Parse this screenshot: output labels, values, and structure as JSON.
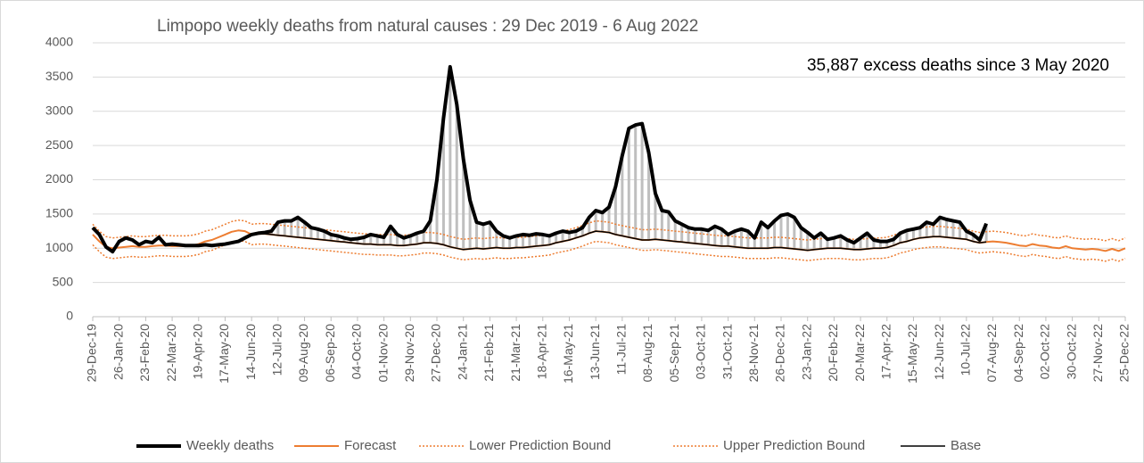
{
  "chart_data": {
    "type": "line",
    "title": "Limpopo weekly deaths from natural causes : 29 Dec 2019 - 6 Aug 2022",
    "annotation": "35,887 excess deaths since 3 May 2020",
    "categories": [
      "29-Dec-19",
      null,
      null,
      null,
      "26-Jan-20",
      null,
      null,
      null,
      "23-Feb-20",
      null,
      null,
      null,
      "22-Mar-20",
      null,
      null,
      null,
      "19-Apr-20",
      null,
      null,
      null,
      "17-May-20",
      null,
      null,
      null,
      "14-Jun-20",
      null,
      null,
      null,
      "12-Jul-20",
      null,
      null,
      null,
      "09-Aug-20",
      null,
      null,
      null,
      "06-Sep-20",
      null,
      null,
      null,
      "04-Oct-20",
      null,
      null,
      null,
      "01-Nov-20",
      null,
      null,
      null,
      "29-Nov-20",
      null,
      null,
      null,
      "27-Dec-20",
      null,
      null,
      null,
      "24-Jan-21",
      null,
      null,
      null,
      "21-Feb-21",
      null,
      null,
      null,
      "21-Mar-21",
      null,
      null,
      null,
      "18-Apr-21",
      null,
      null,
      null,
      "16-May-21",
      null,
      null,
      null,
      "13-Jun-21",
      null,
      null,
      null,
      "11-Jul-21",
      null,
      null,
      null,
      "08-Aug-21",
      null,
      null,
      null,
      "05-Sep-21",
      null,
      null,
      null,
      "03-Oct-21",
      null,
      null,
      null,
      "31-Oct-21",
      null,
      null,
      null,
      "28-Nov-21",
      null,
      null,
      null,
      "26-Dec-21",
      null,
      null,
      null,
      "23-Jan-22",
      null,
      null,
      null,
      "20-Feb-22",
      null,
      null,
      null,
      "20-Mar-22",
      null,
      null,
      null,
      "17-Apr-22",
      null,
      null,
      null,
      "15-May-22",
      null,
      null,
      null,
      "12-Jun-22",
      null,
      null,
      null,
      "10-Jul-22",
      null,
      null,
      null,
      "07-Aug-22",
      null,
      null,
      null,
      "04-Sep-22",
      null,
      null,
      null,
      "02-Oct-22",
      null,
      null,
      null,
      "30-Oct-22",
      null,
      null,
      null,
      "27-Nov-22",
      null,
      null,
      null,
      "25-Dec-22"
    ],
    "series": [
      {
        "name": "Weekly deaths",
        "color": "#000000",
        "width": 4,
        "dash": "solid",
        "values": [
          1300,
          1200,
          1020,
          950,
          1100,
          1150,
          1120,
          1050,
          1100,
          1080,
          1160,
          1050,
          1060,
          1050,
          1040,
          1040,
          1040,
          1050,
          1040,
          1050,
          1060,
          1080,
          1100,
          1150,
          1200,
          1220,
          1230,
          1250,
          1380,
          1400,
          1400,
          1450,
          1380,
          1300,
          1280,
          1250,
          1200,
          1180,
          1150,
          1130,
          1140,
          1160,
          1200,
          1180,
          1160,
          1320,
          1200,
          1150,
          1180,
          1220,
          1250,
          1400,
          2000,
          2900,
          3650,
          3100,
          2300,
          1700,
          1380,
          1350,
          1380,
          1250,
          1180,
          1150,
          1180,
          1200,
          1190,
          1210,
          1200,
          1180,
          1220,
          1250,
          1230,
          1250,
          1300,
          1450,
          1550,
          1520,
          1600,
          1900,
          2350,
          2750,
          2800,
          2820,
          2400,
          1800,
          1550,
          1530,
          1400,
          1350,
          1300,
          1280,
          1280,
          1260,
          1320,
          1280,
          1200,
          1250,
          1280,
          1250,
          1150,
          1380,
          1300,
          1400,
          1480,
          1500,
          1450,
          1300,
          1230,
          1150,
          1220,
          1130,
          1150,
          1180,
          1120,
          1080,
          1150,
          1220,
          1120,
          1100,
          1100,
          1130,
          1220,
          1260,
          1280,
          1300,
          1380,
          1350,
          1450,
          1420,
          1400,
          1380,
          1250,
          1200,
          1120,
          1360,
          null,
          null,
          null,
          null,
          null,
          null,
          null,
          null,
          null,
          null,
          null,
          null,
          null,
          null,
          null,
          null,
          null,
          null,
          null,
          null,
          null
        ]
      },
      {
        "name": "Forecast",
        "color": "#ed7d31",
        "width": 2,
        "dash": "solid",
        "values": [
          1200,
          1100,
          1020,
          1000,
          1010,
          1020,
          1030,
          1020,
          1020,
          1030,
          1040,
          1040,
          1030,
          1030,
          1030,
          1040,
          1060,
          1100,
          1120,
          1160,
          1200,
          1240,
          1260,
          1250,
          1200,
          1210,
          1210,
          1200,
          1190,
          1180,
          1170,
          1160,
          1150,
          1140,
          1130,
          1120,
          1110,
          1100,
          1090,
          1080,
          1070,
          1060,
          1060,
          1050,
          1050,
          1050,
          1040,
          1040,
          1050,
          1060,
          1080,
          1080,
          1070,
          1050,
          1020,
          1000,
          980,
          990,
          1000,
          990,
          1000,
          1010,
          1000,
          1000,
          1010,
          1010,
          1020,
          1030,
          1040,
          1050,
          1080,
          1100,
          1120,
          1150,
          1180,
          1220,
          1250,
          1240,
          1230,
          1200,
          1180,
          1160,
          1140,
          1120,
          1120,
          1130,
          1120,
          1110,
          1100,
          1090,
          1080,
          1070,
          1060,
          1050,
          1040,
          1030,
          1030,
          1020,
          1010,
          1000,
          1000,
          1000,
          1000,
          1010,
          1010,
          1000,
          990,
          980,
          970,
          980,
          990,
          1000,
          1000,
          1000,
          990,
          980,
          980,
          990,
          1000,
          1000,
          1010,
          1040,
          1080,
          1100,
          1130,
          1150,
          1160,
          1170,
          1170,
          1160,
          1150,
          1140,
          1130,
          1100,
          1080,
          1090,
          1100,
          1090,
          1080,
          1060,
          1040,
          1030,
          1060,
          1040,
          1030,
          1010,
          1000,
          1030,
          1000,
          990,
          980,
          990,
          980,
          960,
          990,
          960,
          1000
        ]
      },
      {
        "name": "Lower Prediction Bound",
        "color": "#ed7d31",
        "width": 1.5,
        "dash": "dotted",
        "values": [
          1050,
          950,
          870,
          850,
          860,
          870,
          880,
          870,
          870,
          880,
          890,
          890,
          880,
          880,
          880,
          890,
          910,
          950,
          970,
          1010,
          1050,
          1090,
          1110,
          1100,
          1050,
          1060,
          1060,
          1050,
          1040,
          1030,
          1020,
          1010,
          1000,
          990,
          980,
          970,
          960,
          950,
          940,
          930,
          920,
          910,
          910,
          900,
          900,
          900,
          890,
          890,
          900,
          910,
          930,
          930,
          920,
          900,
          870,
          850,
          830,
          840,
          850,
          840,
          850,
          860,
          850,
          850,
          860,
          860,
          870,
          880,
          890,
          900,
          930,
          950,
          970,
          1000,
          1030,
          1070,
          1100,
          1090,
          1080,
          1050,
          1030,
          1010,
          990,
          970,
          970,
          980,
          970,
          960,
          950,
          940,
          930,
          920,
          910,
          900,
          890,
          880,
          880,
          870,
          860,
          850,
          850,
          850,
          850,
          860,
          860,
          850,
          840,
          830,
          820,
          830,
          840,
          850,
          850,
          850,
          840,
          830,
          830,
          840,
          850,
          850,
          860,
          890,
          930,
          950,
          980,
          1000,
          1010,
          1020,
          1020,
          1010,
          1000,
          990,
          980,
          950,
          930,
          940,
          950,
          940,
          930,
          910,
          890,
          880,
          910,
          890,
          880,
          860,
          850,
          880,
          850,
          840,
          830,
          840,
          830,
          810,
          840,
          810,
          850
        ]
      },
      {
        "name": "Upper Prediction Bound",
        "color": "#ed7d31",
        "width": 1.5,
        "dash": "dotted",
        "values": [
          1350,
          1250,
          1170,
          1150,
          1160,
          1170,
          1180,
          1170,
          1170,
          1180,
          1190,
          1190,
          1180,
          1180,
          1180,
          1190,
          1210,
          1250,
          1270,
          1310,
          1350,
          1390,
          1410,
          1400,
          1350,
          1360,
          1360,
          1350,
          1340,
          1330,
          1320,
          1310,
          1300,
          1290,
          1280,
          1270,
          1260,
          1250,
          1240,
          1230,
          1220,
          1210,
          1210,
          1200,
          1200,
          1200,
          1190,
          1190,
          1200,
          1210,
          1230,
          1230,
          1220,
          1200,
          1170,
          1150,
          1130,
          1140,
          1150,
          1140,
          1150,
          1160,
          1150,
          1150,
          1160,
          1160,
          1170,
          1180,
          1190,
          1200,
          1230,
          1250,
          1270,
          1300,
          1330,
          1370,
          1400,
          1390,
          1380,
          1350,
          1330,
          1310,
          1290,
          1270,
          1270,
          1280,
          1270,
          1260,
          1250,
          1240,
          1230,
          1220,
          1210,
          1200,
          1190,
          1180,
          1180,
          1170,
          1160,
          1150,
          1150,
          1150,
          1150,
          1160,
          1160,
          1150,
          1140,
          1130,
          1120,
          1130,
          1140,
          1150,
          1150,
          1150,
          1140,
          1130,
          1130,
          1140,
          1150,
          1150,
          1160,
          1190,
          1230,
          1250,
          1280,
          1300,
          1310,
          1320,
          1320,
          1310,
          1300,
          1290,
          1280,
          1250,
          1230,
          1240,
          1250,
          1240,
          1230,
          1210,
          1190,
          1180,
          1210,
          1190,
          1180,
          1160,
          1150,
          1180,
          1150,
          1140,
          1130,
          1140,
          1130,
          1110,
          1140,
          1110,
          1150
        ]
      },
      {
        "name": "Base",
        "color": "#000000",
        "width": 1.5,
        "dash": "solid",
        "values": [
          1300,
          1200,
          1020,
          950,
          1100,
          1150,
          1120,
          1050,
          1100,
          1080,
          1160,
          1050,
          1060,
          1050,
          1040,
          1040,
          1040,
          1050,
          1040,
          1050,
          1060,
          1080,
          1100,
          1150,
          1200,
          1210,
          1210,
          1200,
          1190,
          1180,
          1170,
          1160,
          1150,
          1140,
          1130,
          1120,
          1110,
          1100,
          1090,
          1080,
          1070,
          1060,
          1060,
          1050,
          1050,
          1050,
          1040,
          1040,
          1050,
          1060,
          1080,
          1080,
          1070,
          1050,
          1020,
          1000,
          980,
          990,
          1000,
          990,
          1000,
          1010,
          1000,
          1000,
          1010,
          1010,
          1020,
          1030,
          1040,
          1050,
          1080,
          1100,
          1120,
          1150,
          1180,
          1220,
          1250,
          1240,
          1230,
          1200,
          1180,
          1160,
          1140,
          1120,
          1120,
          1130,
          1120,
          1110,
          1100,
          1090,
          1080,
          1070,
          1060,
          1050,
          1040,
          1030,
          1030,
          1020,
          1010,
          1000,
          1000,
          1000,
          1000,
          1010,
          1010,
          1000,
          990,
          980,
          970,
          980,
          990,
          1000,
          1000,
          1000,
          990,
          980,
          980,
          990,
          1000,
          1000,
          1010,
          1040,
          1080,
          1100,
          1130,
          1150,
          1160,
          1170,
          1170,
          1160,
          1150,
          1140,
          1130,
          1100,
          1080,
          1090,
          null,
          null,
          null,
          null,
          null,
          null,
          null,
          null,
          null,
          null,
          null,
          null,
          null,
          null,
          null,
          null,
          null,
          null,
          null,
          null,
          null
        ]
      }
    ],
    "excess_bars": {
      "color": "#bfbfbf"
    },
    "ylim": [
      0,
      4000
    ],
    "yticks": [
      0,
      500,
      1000,
      1500,
      2000,
      2500,
      3000,
      3500,
      4000
    ],
    "yticks_labels": null,
    "grid": true,
    "legend": "bottom"
  }
}
